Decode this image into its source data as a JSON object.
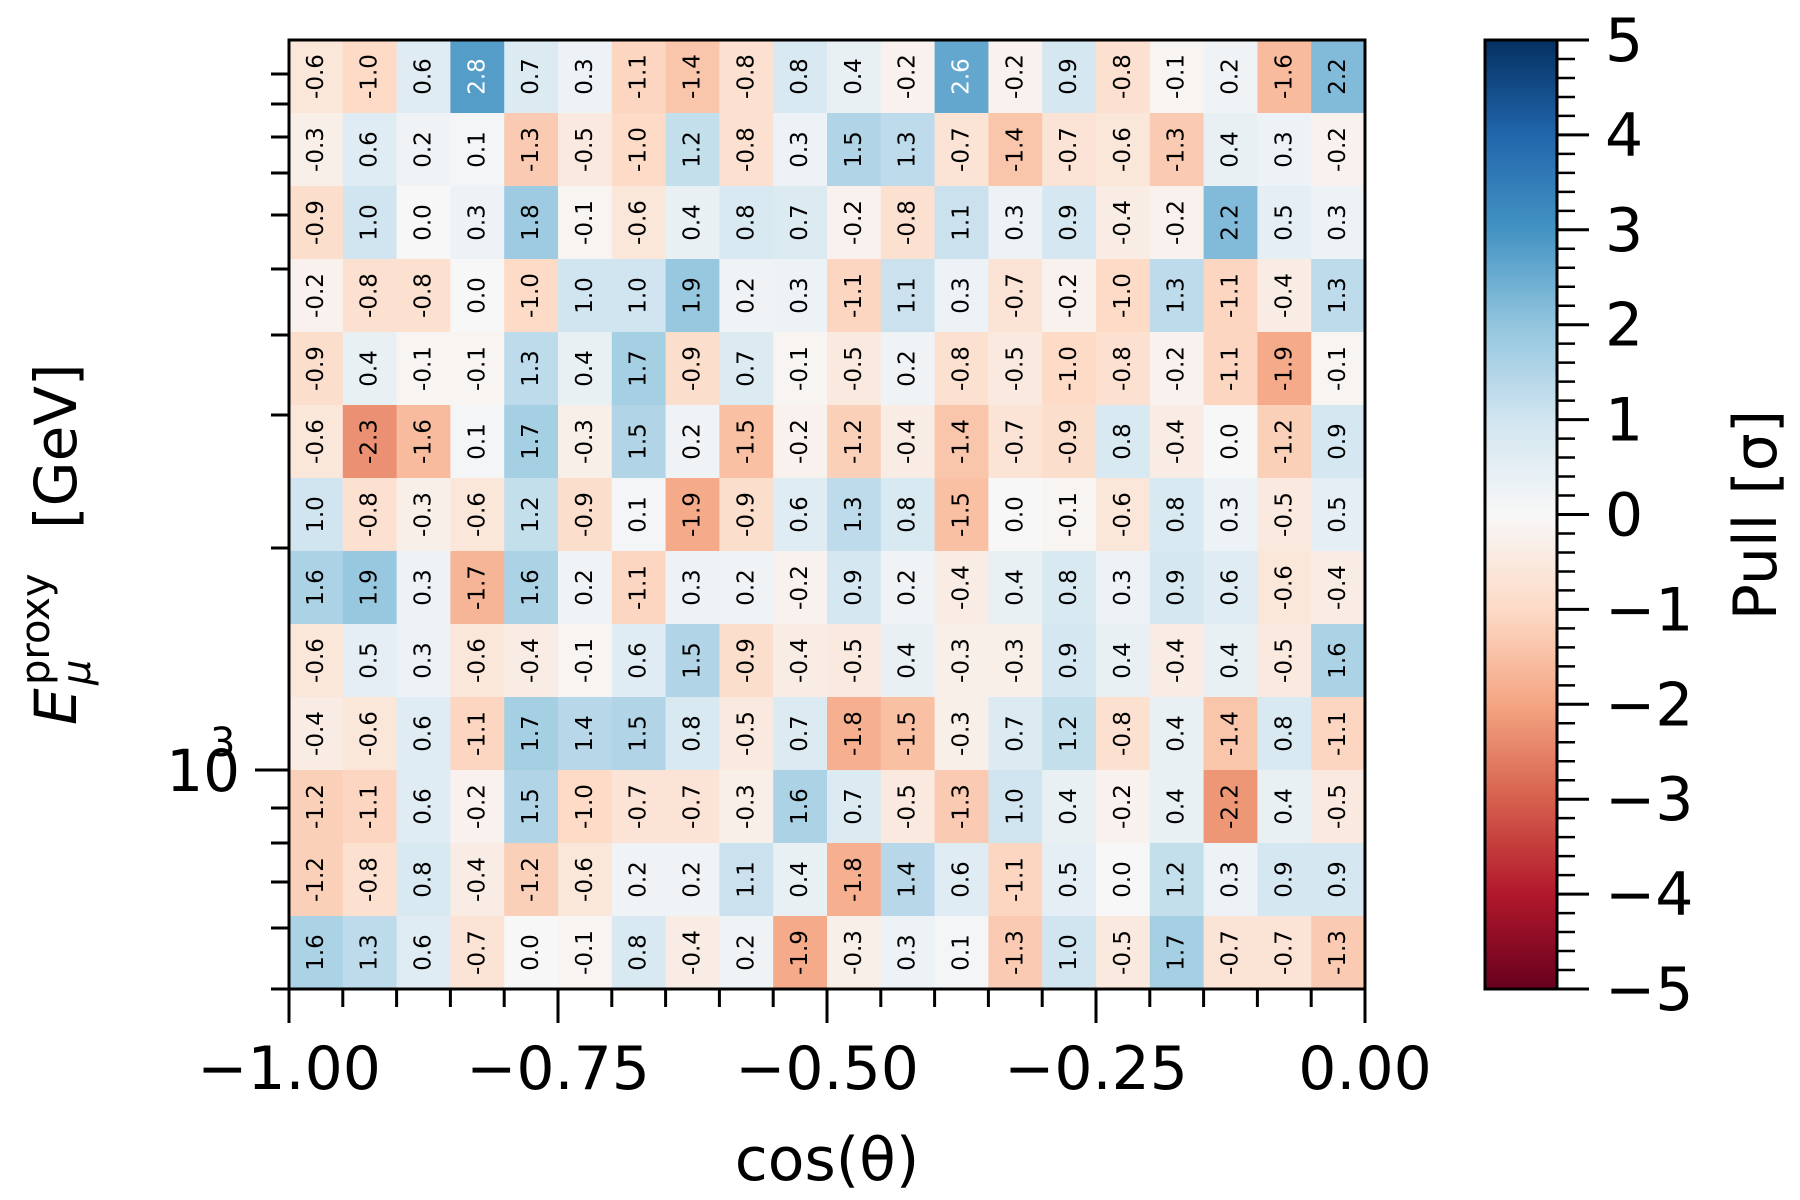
{
  "chart_data": {
    "type": "heatmap",
    "xlabel": "cos(θ)",
    "ylabel": {
      "symbol": "E",
      "subscript": "μ",
      "superscript": "proxy",
      "unit": "[GeV]"
    },
    "xlim": [
      -1.0,
      0.0
    ],
    "x_tick_values": [
      -1.0,
      -0.75,
      -0.5,
      -0.25,
      0.0
    ],
    "x_tick_labels": [
      "−1.00",
      "−0.75",
      "−0.50",
      "−0.25",
      "0.00"
    ],
    "y_scale": "log",
    "y_major_tick": {
      "base": "10",
      "exponent": "3"
    },
    "colorbar": {
      "label": "Pull [σ]",
      "colormap": "RdBu",
      "vmin": -5,
      "vmax": 5,
      "tick_values": [
        5,
        4,
        3,
        2,
        1,
        0,
        -1,
        -2,
        -3,
        -4,
        -5
      ],
      "tick_labels": [
        "5",
        "4",
        "3",
        "2",
        "1",
        "0",
        "−1",
        "−2",
        "−3",
        "−4",
        "−5"
      ]
    },
    "n_columns": 20,
    "rows_top_to_bottom": [
      [
        -0.6,
        -1.0,
        0.6,
        2.8,
        0.7,
        0.3,
        -1.1,
        -1.4,
        -0.8,
        0.8,
        0.4,
        -0.2,
        2.6,
        -0.2,
        0.9,
        -0.8,
        -0.1,
        0.2,
        -1.6,
        2.2
      ],
      [
        -0.3,
        0.6,
        0.2,
        0.1,
        -1.3,
        -0.5,
        -1.0,
        1.2,
        -0.8,
        0.3,
        1.5,
        1.3,
        -0.7,
        -1.4,
        -0.7,
        -0.6,
        -1.3,
        0.4,
        0.3,
        -0.2
      ],
      [
        -0.9,
        1.0,
        -0.0,
        0.3,
        1.8,
        -0.1,
        -0.6,
        0.4,
        0.8,
        0.7,
        -0.2,
        -0.8,
        1.1,
        0.3,
        0.9,
        -0.4,
        -0.2,
        2.2,
        0.5,
        0.3
      ],
      [
        -0.2,
        -0.8,
        -0.8,
        -0.0,
        -1.0,
        1.0,
        1.0,
        1.9,
        0.2,
        0.3,
        -1.1,
        1.1,
        0.3,
        -0.7,
        -0.2,
        -1.0,
        1.3,
        -1.1,
        -0.4,
        1.3
      ],
      [
        -0.9,
        0.4,
        -0.1,
        -0.1,
        1.3,
        0.4,
        1.7,
        -0.9,
        0.7,
        -0.1,
        -0.5,
        0.2,
        -0.8,
        -0.5,
        -1.0,
        -0.8,
        -0.2,
        -1.1,
        -1.9,
        -0.1
      ],
      [
        -0.6,
        -2.3,
        -1.6,
        0.1,
        1.7,
        -0.3,
        1.5,
        0.2,
        -1.5,
        -0.2,
        -1.2,
        -0.4,
        -1.4,
        -0.7,
        -0.9,
        0.8,
        -0.4,
        -0.0,
        -1.2,
        0.9
      ],
      [
        1.0,
        -0.8,
        -0.3,
        -0.6,
        1.2,
        -0.9,
        0.1,
        -1.9,
        -0.9,
        0.6,
        1.3,
        0.8,
        -1.5,
        0.0,
        -0.1,
        -0.6,
        0.8,
        0.3,
        -0.5,
        0.5
      ],
      [
        1.6,
        1.9,
        0.3,
        -1.7,
        1.6,
        0.2,
        -1.1,
        0.3,
        0.2,
        -0.2,
        0.9,
        0.2,
        -0.4,
        0.4,
        0.8,
        0.3,
        0.9,
        0.6,
        -0.6,
        -0.4
      ],
      [
        -0.6,
        0.5,
        0.3,
        -0.6,
        -0.4,
        -0.1,
        0.6,
        1.5,
        -0.9,
        -0.4,
        -0.5,
        0.4,
        -0.3,
        -0.3,
        0.9,
        0.4,
        -0.4,
        0.4,
        -0.5,
        1.6
      ],
      [
        -0.4,
        -0.6,
        0.6,
        -1.1,
        1.7,
        1.4,
        1.5,
        0.8,
        -0.5,
        0.7,
        -1.8,
        -1.5,
        -0.3,
        0.7,
        1.2,
        -0.8,
        0.4,
        -1.4,
        0.8,
        -1.1
      ],
      [
        -1.2,
        -1.1,
        0.6,
        -0.2,
        1.5,
        -1.0,
        -0.7,
        -0.7,
        -0.3,
        1.6,
        0.7,
        -0.5,
        -1.3,
        1.0,
        0.4,
        -0.2,
        0.4,
        -2.2,
        0.4,
        -0.5
      ],
      [
        -1.2,
        -0.8,
        0.8,
        -0.4,
        -1.2,
        -0.6,
        0.2,
        0.2,
        1.1,
        0.4,
        -1.8,
        1.4,
        0.6,
        -1.1,
        0.5,
        0.0,
        1.2,
        0.3,
        0.9,
        0.9
      ],
      [
        1.6,
        1.3,
        0.6,
        -0.7,
        -0.0,
        -0.1,
        0.8,
        -0.4,
        0.2,
        -1.9,
        -0.3,
        0.3,
        0.1,
        -1.3,
        1.0,
        -0.5,
        1.7,
        -0.7,
        -0.7,
        -1.3
      ]
    ]
  }
}
